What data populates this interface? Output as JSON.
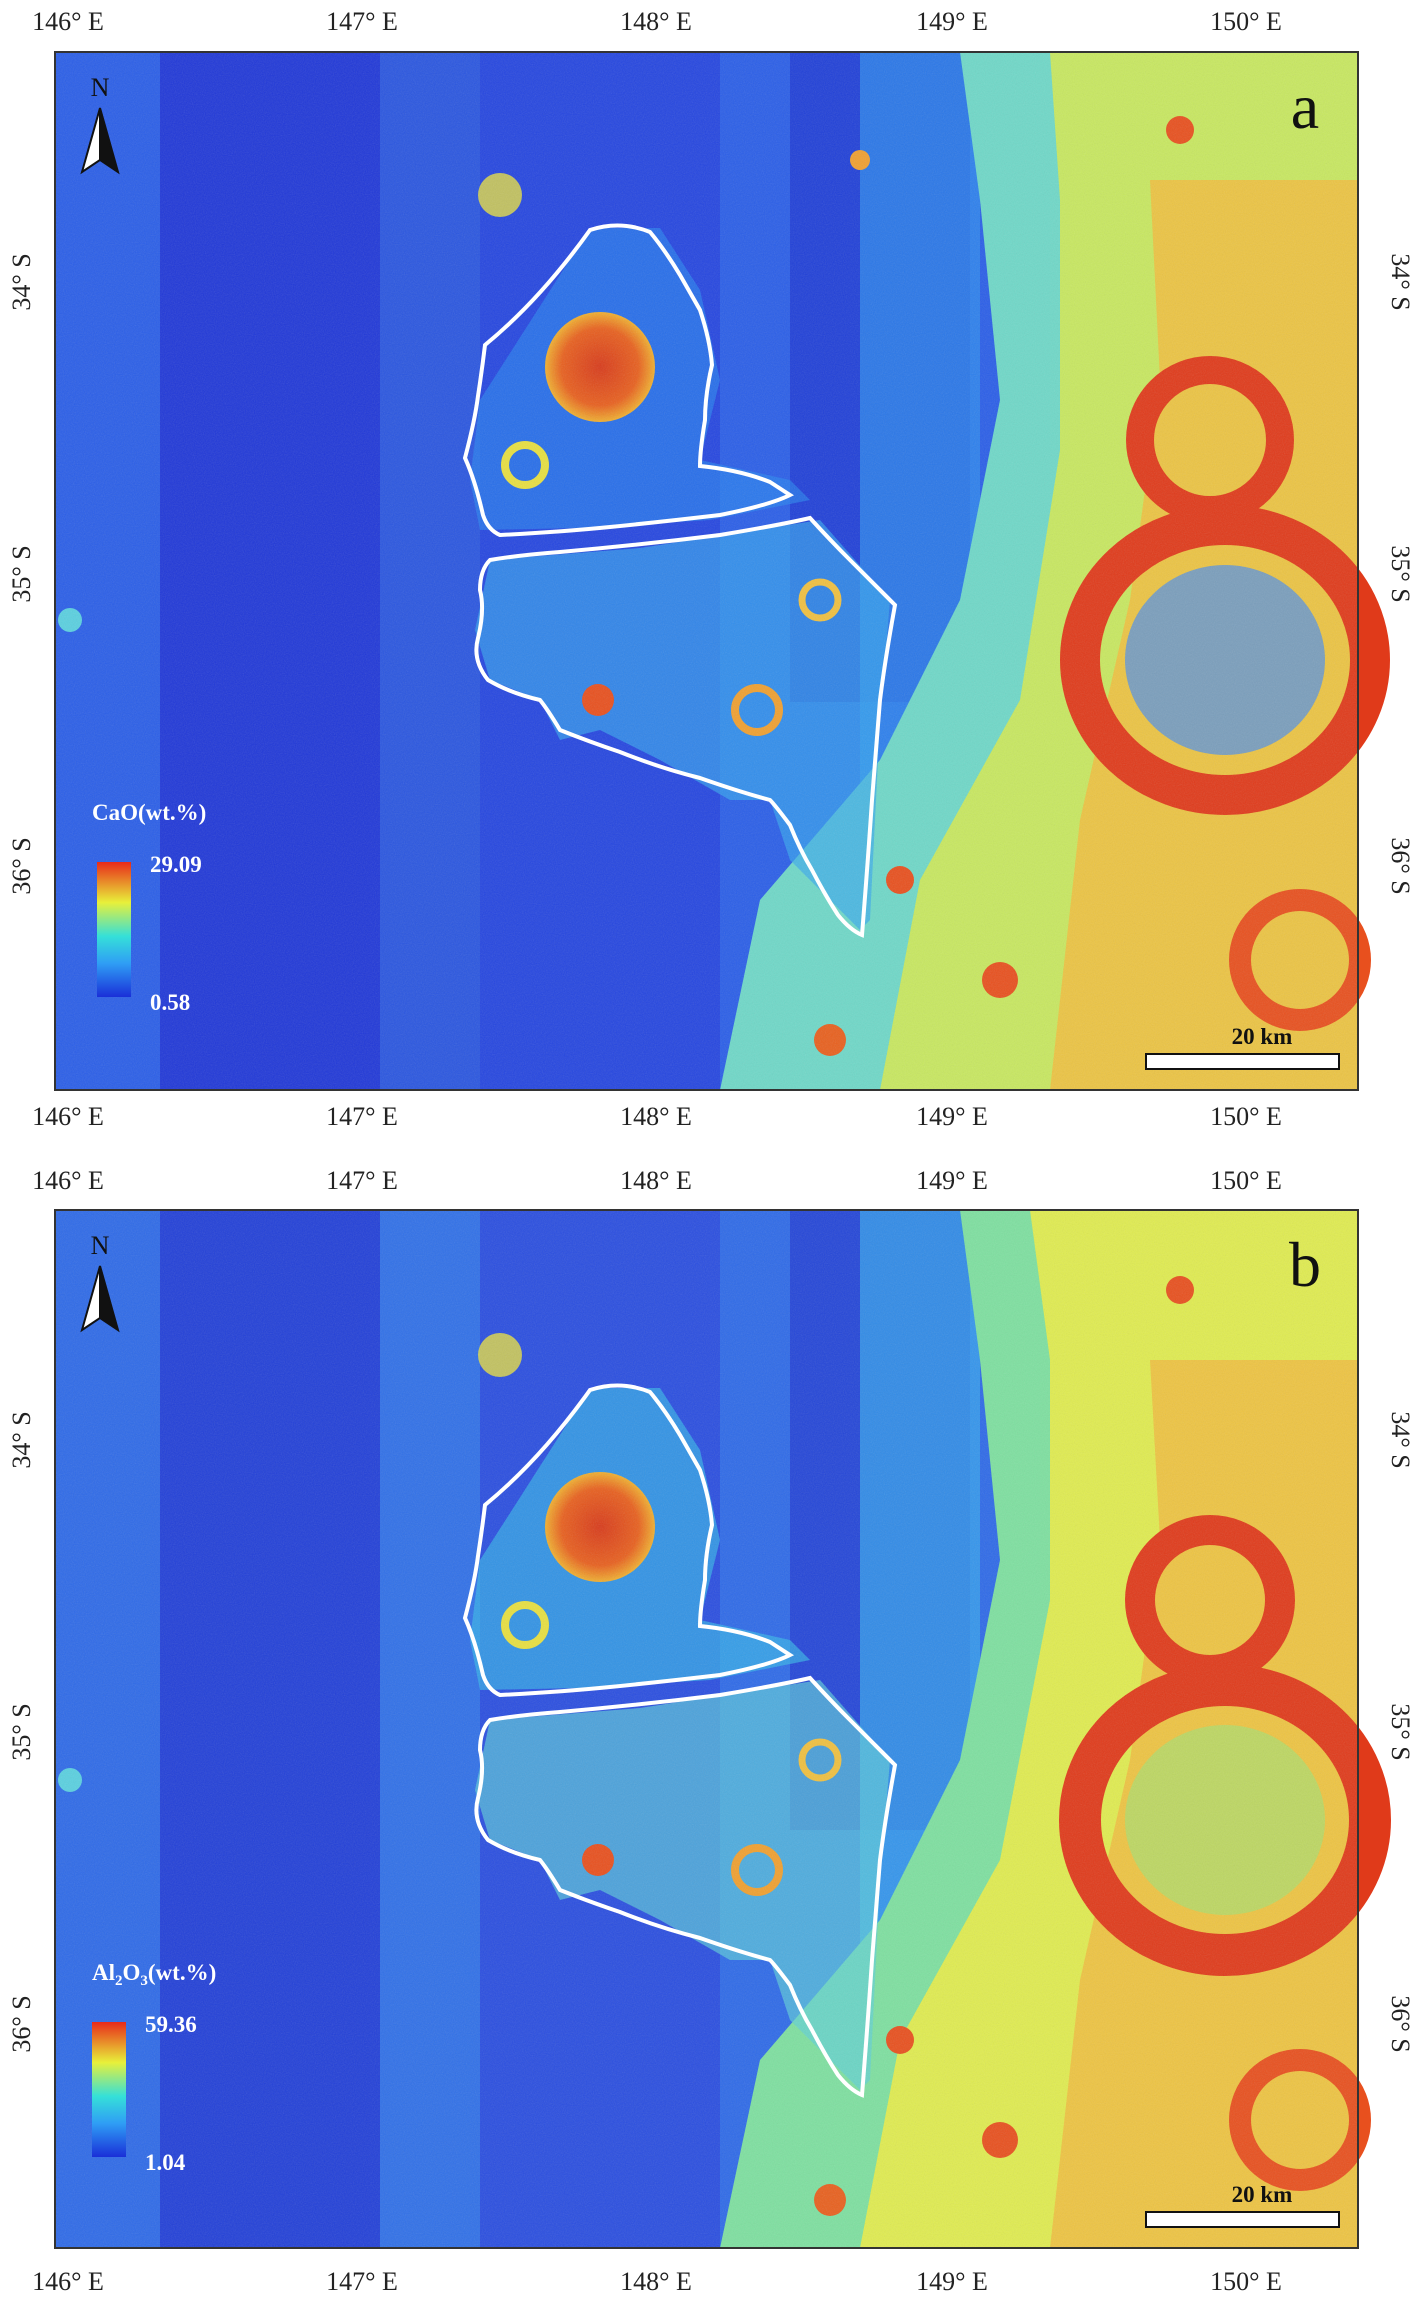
{
  "panels": [
    {
      "id": "a",
      "panel_label": "a",
      "north_label": "N",
      "legend": {
        "title": "CaO(wt.%)",
        "max": "29.09",
        "min": "0.58"
      },
      "scale_bar": {
        "label": "20 km"
      },
      "lon_ticks": [
        "146° E",
        "147° E",
        "148° E",
        "149° E",
        "150° E"
      ],
      "lat_ticks": [
        "34° S",
        "35° S",
        "36° S"
      ]
    },
    {
      "id": "b",
      "panel_label": "b",
      "north_label": "N",
      "legend": {
        "title_main": "Al",
        "title_sub": "2",
        "title_mid": "O",
        "title_sub2": "3",
        "title_tail": "(wt.%)",
        "max": "59.36",
        "min": "1.04"
      },
      "scale_bar": {
        "label": "20 km"
      },
      "lon_ticks": [
        "146° E",
        "147° E",
        "148° E",
        "149° E",
        "150° E"
      ],
      "lat_ticks": [
        "34° S",
        "35° S",
        "36° S"
      ]
    }
  ],
  "colors": {
    "low": "#1a2fd8",
    "mid_low": "#2f7df5",
    "mid": "#35c8e8",
    "mid_high": "#e8f03a",
    "high": "#e8401e",
    "outline": "#ffffff",
    "frame": "#333333"
  }
}
